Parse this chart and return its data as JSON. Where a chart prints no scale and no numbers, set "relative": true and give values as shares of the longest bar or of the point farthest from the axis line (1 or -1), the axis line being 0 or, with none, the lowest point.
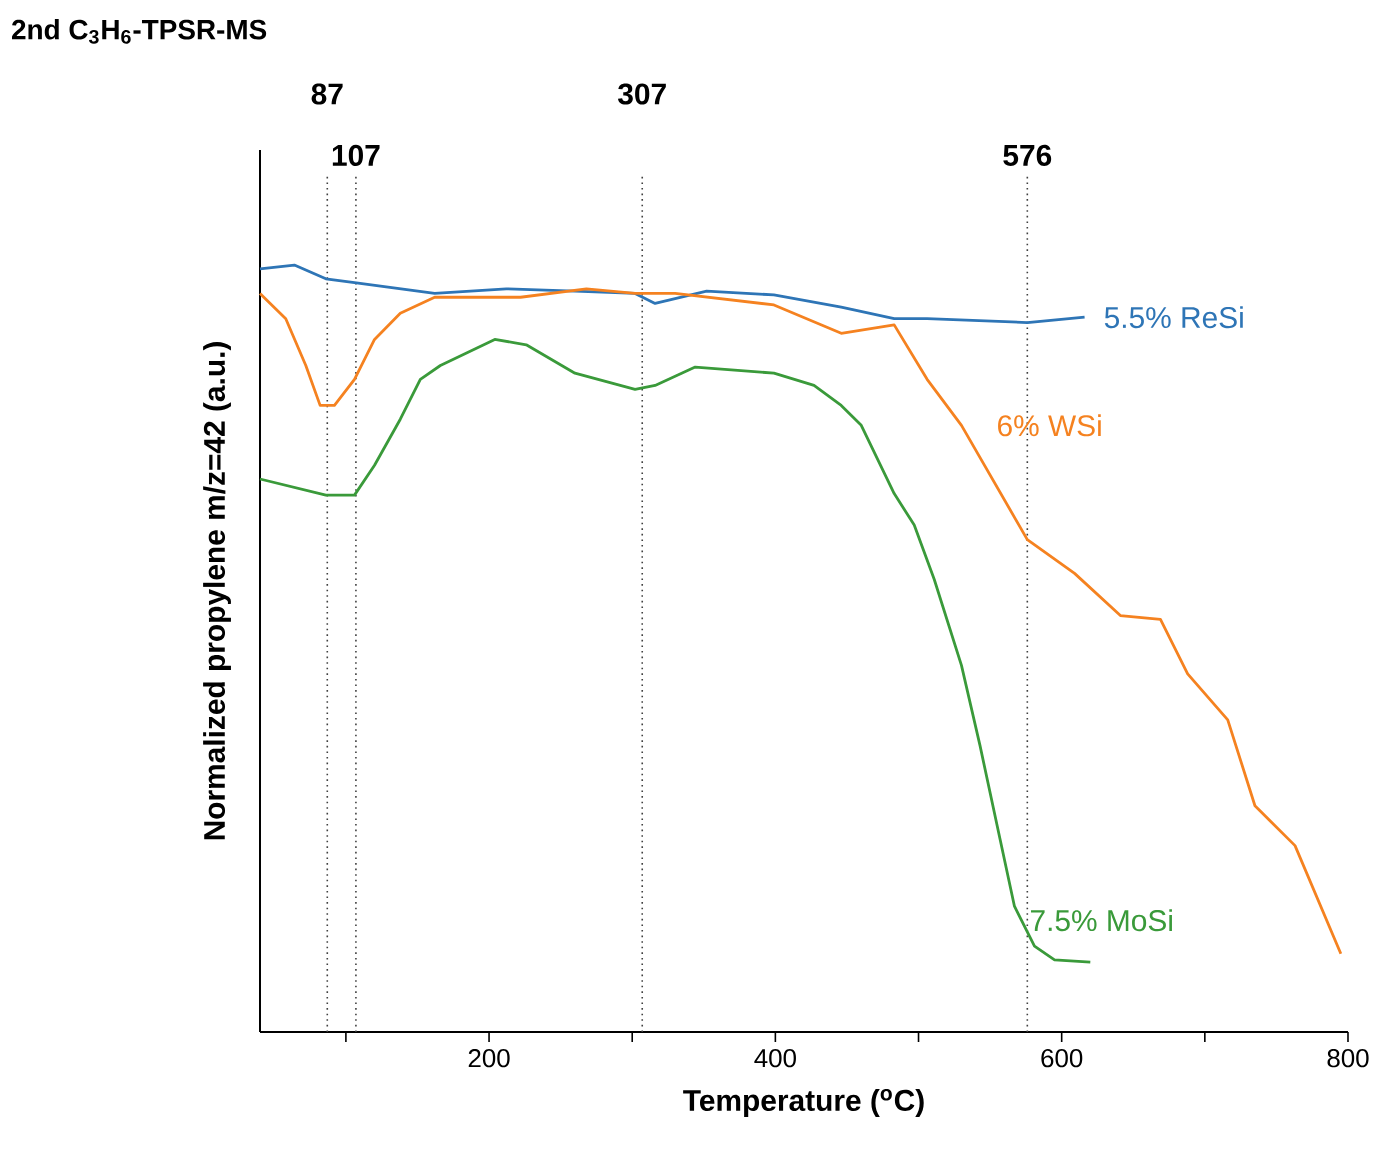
{
  "chart_data": {
    "type": "line",
    "title": "2nd C$_{3}$H$_{6}$-TPSR-MS",
    "xlabel": "Temperature ($^{o}$C)",
    "ylabel": "Normalized propylene m/z=42 (a.u.)",
    "relative": true,
    "xlim": [
      40,
      800
    ],
    "xticks": [
      {
        "value": 100,
        "label": null
      },
      200,
      {
        "value": 300,
        "label": null
      },
      400,
      {
        "value": 500,
        "label": null
      },
      600,
      {
        "value": 700,
        "label": null
      },
      800
    ],
    "grid": false,
    "marker": "none",
    "line_style": "solid",
    "series": [
      {
        "name": "5.5% ReSi",
        "color": "#2e75b6",
        "x": [
          40,
          64,
          86,
          106,
          162,
          212,
          260,
          302,
          316,
          352,
          399,
          446,
          483,
          506,
          576,
          616
        ],
        "values": [
          0.995,
          1,
          0.982,
          0.977,
          0.963,
          0.969,
          0.966,
          0.963,
          0.95,
          0.966,
          0.961,
          0.945,
          0.93,
          0.93,
          0.925,
          0.932
        ]
      },
      {
        "name": "6% WSi",
        "color": "#f58220",
        "x": [
          40,
          58,
          72,
          82,
          92,
          106,
          120,
          138,
          162,
          222,
          268,
          302,
          330,
          399,
          446,
          483,
          506,
          530,
          576,
          609,
          641,
          669,
          688,
          716,
          735,
          763,
          795
        ],
        "values": [
          0.963,
          0.93,
          0.869,
          0.817,
          0.817,
          0.851,
          0.903,
          0.937,
          0.958,
          0.958,
          0.969,
          0.963,
          0.963,
          0.948,
          0.911,
          0.922,
          0.851,
          0.791,
          0.642,
          0.598,
          0.543,
          0.538,
          0.467,
          0.407,
          0.295,
          0.243,
          0.102
        ]
      },
      {
        "name": "7.5% MoSi",
        "color": "#3a9a3a",
        "x": [
          40,
          86,
          106,
          120,
          138,
          152,
          166,
          204,
          226,
          260,
          302,
          316,
          344,
          399,
          427,
          446,
          460,
          483,
          497,
          511,
          530,
          543,
          557,
          567,
          581,
          595,
          620
        ],
        "values": [
          0.721,
          0.7,
          0.7,
          0.739,
          0.799,
          0.851,
          0.869,
          0.903,
          0.896,
          0.859,
          0.838,
          0.843,
          0.867,
          0.859,
          0.843,
          0.817,
          0.791,
          0.702,
          0.661,
          0.59,
          0.478,
          0.373,
          0.251,
          0.164,
          0.112,
          0.094,
          0.091
        ]
      }
    ],
    "ref_lines": [
      {
        "axis": "x",
        "value": 87,
        "label": "87",
        "color": "#404040",
        "line_style": "dotted"
      },
      {
        "axis": "x",
        "value": 107,
        "label": "107",
        "color": "#404040",
        "line_style": "dotted"
      },
      {
        "axis": "x",
        "value": 307,
        "label": "307",
        "color": "#404040",
        "line_style": "dotted"
      },
      {
        "axis": "x",
        "value": 576,
        "label": "576",
        "color": "#404040",
        "line_style": "dotted"
      }
    ]
  }
}
